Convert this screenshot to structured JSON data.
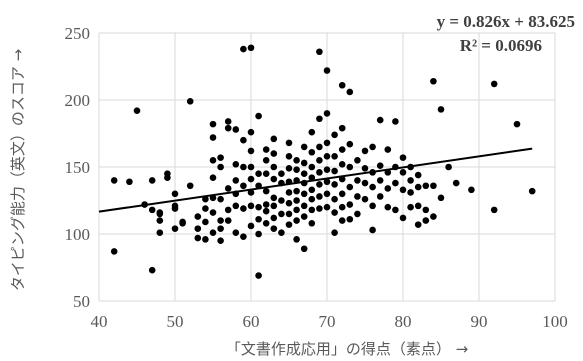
{
  "chart_data": {
    "type": "scatter",
    "xlabel": "「文書作成応用」の得点（素点） →",
    "ylabel": "タイピング能力（英文）のスコア →",
    "xlim": [
      40,
      100
    ],
    "ylim": [
      50,
      250
    ],
    "xticks": [
      "40",
      "50",
      "60",
      "70",
      "80",
      "90",
      "100"
    ],
    "yticks": [
      "50",
      "100",
      "150",
      "200",
      "250"
    ],
    "grid": true,
    "trendline": {
      "type": "linear",
      "slope": 0.826,
      "intercept": 83.625,
      "x_start": 40,
      "x_end": 97
    },
    "equation_label": "y = 0.826x + 83.625",
    "r2_label": "R² = 0.0696",
    "points": [
      [
        42,
        140
      ],
      [
        42,
        87
      ],
      [
        44,
        139
      ],
      [
        45,
        192
      ],
      [
        46,
        122
      ],
      [
        47,
        118
      ],
      [
        47,
        73
      ],
      [
        47,
        140
      ],
      [
        48,
        101
      ],
      [
        48,
        110
      ],
      [
        48,
        115
      ],
      [
        48,
        116
      ],
      [
        49,
        142
      ],
      [
        49,
        145
      ],
      [
        50,
        130
      ],
      [
        50,
        121
      ],
      [
        50,
        119
      ],
      [
        50,
        104
      ],
      [
        51,
        109
      ],
      [
        51,
        108
      ],
      [
        52,
        199
      ],
      [
        52,
        136
      ],
      [
        53,
        113
      ],
      [
        53,
        104
      ],
      [
        53,
        97
      ],
      [
        54,
        126
      ],
      [
        54,
        119
      ],
      [
        54,
        109
      ],
      [
        54,
        96
      ],
      [
        55,
        182
      ],
      [
        55,
        172
      ],
      [
        55,
        155
      ],
      [
        55,
        142
      ],
      [
        55,
        127
      ],
      [
        55,
        116
      ],
      [
        55,
        101
      ],
      [
        56,
        157
      ],
      [
        56,
        150
      ],
      [
        56,
        126
      ],
      [
        56,
        110
      ],
      [
        56,
        104
      ],
      [
        56,
        95
      ],
      [
        57,
        184
      ],
      [
        57,
        179
      ],
      [
        57,
        134
      ],
      [
        57,
        118
      ],
      [
        57,
        110
      ],
      [
        58,
        178
      ],
      [
        58,
        152
      ],
      [
        58,
        140
      ],
      [
        58,
        130
      ],
      [
        58,
        121
      ],
      [
        58,
        101
      ],
      [
        59,
        238
      ],
      [
        59,
        170
      ],
      [
        59,
        150
      ],
      [
        59,
        136
      ],
      [
        59,
        119
      ],
      [
        59,
        98
      ],
      [
        60,
        239
      ],
      [
        60,
        176
      ],
      [
        60,
        162
      ],
      [
        60,
        150
      ],
      [
        60,
        141
      ],
      [
        60,
        131
      ],
      [
        60,
        121
      ],
      [
        60,
        106
      ],
      [
        61,
        188
      ],
      [
        61,
        145
      ],
      [
        61,
        136
      ],
      [
        61,
        120
      ],
      [
        61,
        111
      ],
      [
        61,
        100
      ],
      [
        61,
        69
      ],
      [
        62,
        163
      ],
      [
        62,
        155
      ],
      [
        62,
        145
      ],
      [
        62,
        132
      ],
      [
        62,
        122
      ],
      [
        62,
        117
      ],
      [
        62,
        108
      ],
      [
        63,
        171
      ],
      [
        63,
        160
      ],
      [
        63,
        150
      ],
      [
        63,
        141
      ],
      [
        63,
        127
      ],
      [
        63,
        121
      ],
      [
        63,
        112
      ],
      [
        63,
        104
      ],
      [
        64,
        145
      ],
      [
        64,
        138
      ],
      [
        64,
        125
      ],
      [
        64,
        115
      ],
      [
        64,
        101
      ],
      [
        65,
        168
      ],
      [
        65,
        158
      ],
      [
        65,
        149
      ],
      [
        65,
        139
      ],
      [
        65,
        131
      ],
      [
        65,
        123
      ],
      [
        65,
        115
      ],
      [
        65,
        107
      ],
      [
        66,
        155
      ],
      [
        66,
        148
      ],
      [
        66,
        140
      ],
      [
        66,
        132
      ],
      [
        66,
        125
      ],
      [
        66,
        118
      ],
      [
        66,
        110
      ],
      [
        66,
        96
      ],
      [
        67,
        165
      ],
      [
        67,
        153
      ],
      [
        67,
        145
      ],
      [
        67,
        138
      ],
      [
        67,
        130
      ],
      [
        67,
        121
      ],
      [
        67,
        113
      ],
      [
        67,
        89
      ],
      [
        68,
        176
      ],
      [
        68,
        161
      ],
      [
        68,
        150
      ],
      [
        68,
        142
      ],
      [
        68,
        133
      ],
      [
        68,
        126
      ],
      [
        68,
        118
      ],
      [
        68,
        108
      ],
      [
        69,
        236
      ],
      [
        69,
        186
      ],
      [
        69,
        165
      ],
      [
        69,
        155
      ],
      [
        69,
        146
      ],
      [
        69,
        137
      ],
      [
        69,
        128
      ],
      [
        69,
        119
      ],
      [
        70,
        222
      ],
      [
        70,
        190
      ],
      [
        70,
        168
      ],
      [
        70,
        158
      ],
      [
        70,
        148
      ],
      [
        70,
        139
      ],
      [
        70,
        130
      ],
      [
        70,
        120
      ],
      [
        71,
        174
      ],
      [
        71,
        158
      ],
      [
        71,
        147
      ],
      [
        71,
        137
      ],
      [
        71,
        126
      ],
      [
        71,
        116
      ],
      [
        71,
        101
      ],
      [
        72,
        211
      ],
      [
        72,
        179
      ],
      [
        72,
        163
      ],
      [
        72,
        152
      ],
      [
        72,
        141
      ],
      [
        72,
        130
      ],
      [
        72,
        120
      ],
      [
        72,
        110
      ],
      [
        73,
        206
      ],
      [
        73,
        167
      ],
      [
        73,
        150
      ],
      [
        73,
        135
      ],
      [
        73,
        122
      ],
      [
        73,
        111
      ],
      [
        74,
        155
      ],
      [
        74,
        140
      ],
      [
        74,
        128
      ],
      [
        74,
        115
      ],
      [
        75,
        162
      ],
      [
        75,
        149
      ],
      [
        75,
        138
      ],
      [
        75,
        126
      ],
      [
        76,
        165
      ],
      [
        76,
        146
      ],
      [
        76,
        135
      ],
      [
        76,
        121
      ],
      [
        76,
        103
      ],
      [
        77,
        185
      ],
      [
        77,
        151
      ],
      [
        77,
        140
      ],
      [
        77,
        128
      ],
      [
        78,
        163
      ],
      [
        78,
        146
      ],
      [
        78,
        134
      ],
      [
        78,
        120
      ],
      [
        79,
        184
      ],
      [
        79,
        150
      ],
      [
        79,
        138
      ],
      [
        79,
        118
      ],
      [
        80,
        157
      ],
      [
        80,
        146
      ],
      [
        80,
        133
      ],
      [
        80,
        112
      ],
      [
        81,
        150
      ],
      [
        81,
        140
      ],
      [
        81,
        131
      ],
      [
        81,
        120
      ],
      [
        82,
        144
      ],
      [
        82,
        135
      ],
      [
        82,
        121
      ],
      [
        82,
        107
      ],
      [
        83,
        136
      ],
      [
        83,
        118
      ],
      [
        83,
        110
      ],
      [
        84,
        214
      ],
      [
        84,
        136
      ],
      [
        84,
        113
      ],
      [
        85,
        193
      ],
      [
        85,
        127
      ],
      [
        86,
        150
      ],
      [
        87,
        138
      ],
      [
        89,
        133
      ],
      [
        92,
        212
      ],
      [
        92,
        118
      ],
      [
        95,
        182
      ],
      [
        97,
        132
      ]
    ]
  }
}
